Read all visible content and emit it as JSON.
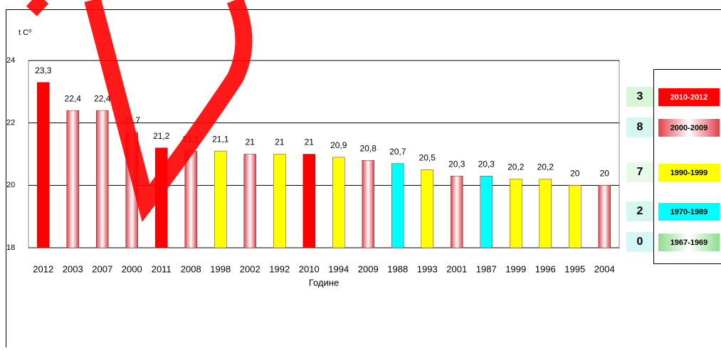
{
  "chart_data": {
    "type": "bar",
    "y_label": "t C⁰",
    "x_label": "Годинe",
    "categories": [
      "2012",
      "2003",
      "2007",
      "2000",
      "2011",
      "2008",
      "1998",
      "2002",
      "1992",
      "2010",
      "1994",
      "2009",
      "1988",
      "1993",
      "2001",
      "1987",
      "1999",
      "1996",
      "1995",
      "2004"
    ],
    "values": [
      23.3,
      22.4,
      22.4,
      21.7,
      21.2,
      21.1,
      21.1,
      21,
      21,
      21,
      20.9,
      20.8,
      20.7,
      20.5,
      20.3,
      20.3,
      20.2,
      20.2,
      20,
      20
    ],
    "value_labels": [
      "23,3",
      "22,4",
      "22,4",
      "21,7",
      "21,2",
      "21,1",
      "21,1",
      "21",
      "21",
      "21",
      "20,9",
      "20,8",
      "20,7",
      "20,5",
      "20,3",
      "20,3",
      "20,2",
      "20,2",
      "20",
      "20"
    ],
    "colors": [
      "#ff0000",
      "#e0404a",
      "#e0404a",
      "#e0404a",
      "#ff0000",
      "#e0404a",
      "#ffff00",
      "#e0404a",
      "#ffff00",
      "#ff0000",
      "#ffff00",
      "#e0404a",
      "#00ffff",
      "#ffff00",
      "#e0404a",
      "#00ffff",
      "#ffff00",
      "#ffff00",
      "#ffff00",
      "#e0404a"
    ],
    "ylim": [
      18,
      24
    ],
    "yticks": [
      18,
      20,
      22,
      24
    ],
    "grid": true,
    "legend": [
      {
        "count": "3",
        "label": "2010-2012",
        "color": "#ff0000",
        "fill": "solid"
      },
      {
        "count": "8",
        "label": "2000-2009",
        "color": "#e0404a",
        "fill": "gradient"
      },
      {
        "count": "7",
        "label": "1990-1999",
        "color": "#ffff00",
        "fill": "solid"
      },
      {
        "count": "2",
        "label": "1970-1989",
        "color": "#00ffff",
        "fill": "solid"
      },
      {
        "count": "0",
        "label": "1967-1969",
        "color": "#8fdc8f",
        "fill": "gradient"
      }
    ]
  }
}
